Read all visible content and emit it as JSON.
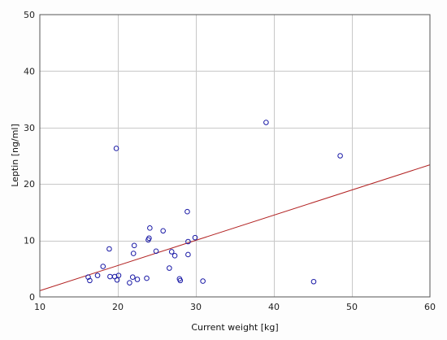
{
  "chart_data": {
    "type": "scatter",
    "title": "",
    "xlabel": "Current weight [kg]",
    "ylabel": "Leptin [ng/ml]",
    "xlim": [
      10,
      60
    ],
    "ylim": [
      0,
      50
    ],
    "xticks": [
      10,
      20,
      30,
      40,
      50,
      60
    ],
    "yticks": [
      0,
      10,
      20,
      30,
      40,
      50
    ],
    "grid": true,
    "legend": "none",
    "colors": {
      "points": "#1a1aa6",
      "trendline": "#b22222",
      "grid": "#c8c8c8",
      "frame": "#555555",
      "plot_background": "#ffffff"
    },
    "series": [
      {
        "points": [
          [
            16.2,
            3.5
          ],
          [
            16.4,
            2.9
          ],
          [
            17.4,
            3.8
          ],
          [
            18.1,
            5.4
          ],
          [
            18.9,
            8.5
          ],
          [
            19.0,
            3.6
          ],
          [
            19.6,
            3.6
          ],
          [
            19.8,
            26.3
          ],
          [
            19.9,
            3.0
          ],
          [
            20.1,
            3.8
          ],
          [
            21.5,
            2.5
          ],
          [
            21.9,
            3.5
          ],
          [
            22.0,
            7.7
          ],
          [
            22.1,
            9.1
          ],
          [
            22.5,
            3.1
          ],
          [
            23.7,
            3.3
          ],
          [
            23.9,
            10.1
          ],
          [
            24.0,
            10.4
          ],
          [
            24.1,
            12.2
          ],
          [
            24.9,
            8.1
          ],
          [
            25.8,
            11.7
          ],
          [
            26.6,
            5.1
          ],
          [
            26.9,
            8.0
          ],
          [
            27.3,
            7.3
          ],
          [
            27.9,
            3.2
          ],
          [
            28.0,
            2.9
          ],
          [
            28.9,
            15.1
          ],
          [
            29.0,
            9.8
          ],
          [
            29.0,
            7.5
          ],
          [
            29.9,
            10.5
          ],
          [
            30.9,
            2.8
          ],
          [
            39.0,
            30.9
          ],
          [
            45.1,
            2.7
          ],
          [
            48.5,
            25.0
          ]
        ]
      }
    ],
    "trendline": {
      "x": [
        10,
        60
      ],
      "y": [
        1.1,
        23.4
      ]
    }
  }
}
